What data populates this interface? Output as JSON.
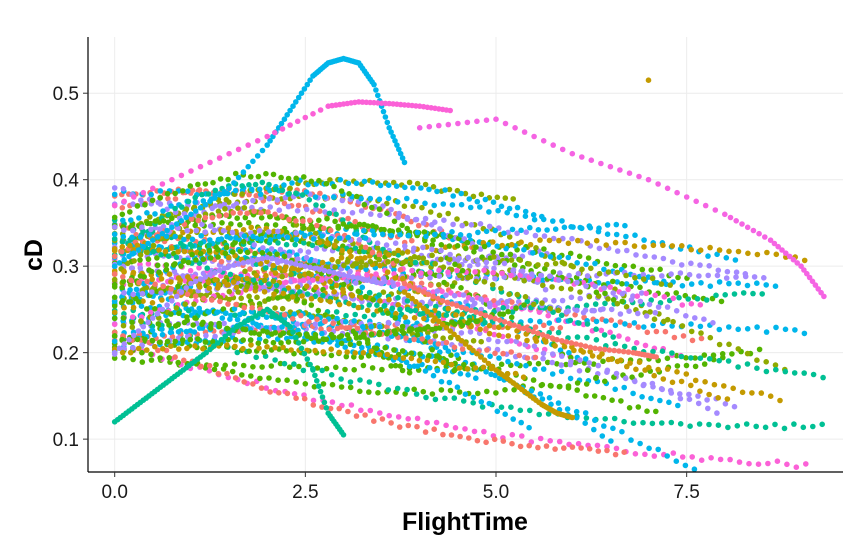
{
  "chart_data": {
    "type": "scatter",
    "title": "",
    "xlabel": "FlightTime",
    "ylabel": "cD",
    "xlim": [
      -0.35,
      9.55
    ],
    "ylim": [
      0.062,
      0.565
    ],
    "x_ticks": [
      0.0,
      2.5,
      5.0,
      7.5
    ],
    "x_tick_labels": [
      "0.0",
      "2.5",
      "5.0",
      "7.5"
    ],
    "y_ticks": [
      0.1,
      0.2,
      0.3,
      0.4,
      0.5
    ],
    "y_tick_labels": [
      "0.1",
      "0.2",
      "0.3",
      "0.4",
      "0.5"
    ],
    "grid": true,
    "legend": "none",
    "palette": [
      "#F8766D",
      "#C49A00",
      "#53B400",
      "#00C094",
      "#00B6EB",
      "#A58AFF",
      "#FB61D7",
      "#8FAA00"
    ],
    "series": [
      {
        "color": "#00B6EB",
        "x": [
          0.0,
          0.5,
          1.0,
          1.5,
          2.0,
          2.3,
          2.6,
          2.8,
          3.0,
          3.2,
          3.4,
          3.6,
          3.8
        ],
        "y": [
          0.3,
          0.33,
          0.36,
          0.39,
          0.44,
          0.48,
          0.52,
          0.535,
          0.54,
          0.535,
          0.51,
          0.46,
          0.42
        ]
      },
      {
        "color": "#00C094",
        "x": [
          0.0,
          0.3,
          0.6,
          0.9,
          1.2,
          1.6,
          2.0,
          2.3,
          2.6,
          2.8,
          3.0
        ],
        "y": [
          0.12,
          0.14,
          0.16,
          0.18,
          0.2,
          0.23,
          0.25,
          0.23,
          0.18,
          0.13,
          0.105
        ]
      },
      {
        "color": "#C49A00",
        "x": [
          3.8,
          4.2,
          4.6,
          5.0,
          5.3,
          5.6,
          5.8,
          6.0
        ],
        "y": [
          0.27,
          0.24,
          0.21,
          0.18,
          0.16,
          0.14,
          0.13,
          0.125
        ]
      },
      {
        "color": "#F8766D",
        "x": [
          3.8,
          4.3,
          4.8,
          5.3,
          5.8,
          6.3,
          6.8,
          7.1
        ],
        "y": [
          0.28,
          0.26,
          0.245,
          0.23,
          0.215,
          0.205,
          0.2,
          0.195
        ]
      },
      {
        "color": "#FB61D7",
        "x": [
          0.0,
          1.0,
          2.0,
          2.8,
          3.2,
          3.6,
          4.0,
          4.4
        ],
        "y": [
          0.37,
          0.41,
          0.45,
          0.485,
          0.49,
          0.488,
          0.485,
          0.48
        ]
      },
      {
        "color": "#F564E3",
        "x": [
          4.0,
          5.0,
          6.0,
          7.0,
          8.0,
          8.6,
          9.0,
          9.3
        ],
        "y": [
          0.46,
          0.47,
          0.43,
          0.4,
          0.36,
          0.33,
          0.3,
          0.265
        ]
      },
      {
        "color": "#A58AFF",
        "x": [
          0.0,
          0.5,
          1.0,
          1.5,
          2.0,
          2.5,
          3.0,
          3.5
        ],
        "y": [
          0.2,
          0.24,
          0.28,
          0.3,
          0.31,
          0.3,
          0.29,
          0.28
        ]
      },
      {
        "color": "#C49A00",
        "x": [
          7.0
        ],
        "y": [
          0.515
        ]
      }
    ]
  }
}
